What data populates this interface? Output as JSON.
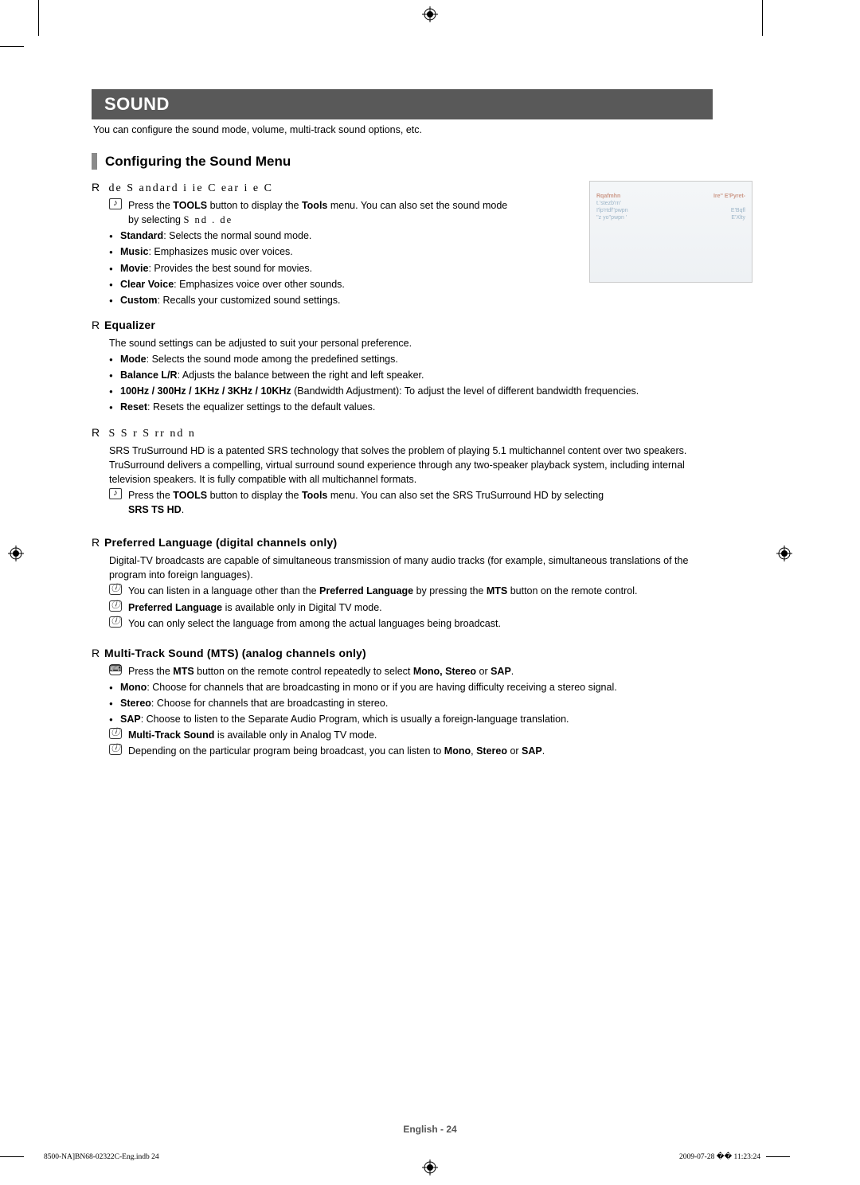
{
  "title": "SOUND",
  "intro": "You can configure the sound mode, volume, multi-track sound options, etc.",
  "sectionHeading": "Configuring the Sound Menu",
  "mode": {
    "head_prefix": "R",
    "head_serif": "    de    S    andard           i                ie     C    ear        i    e     C",
    "tool_pre": "Press the ",
    "tool_b1": "TOOLS",
    "tool_mid": " button to display the ",
    "tool_b2": "Tools",
    "tool_post": " menu. You can also set the sound mode by selecting ",
    "tool_serif": "              S      nd .      de",
    "items": [
      {
        "b": "Standard",
        "t": ": Selects the normal sound mode."
      },
      {
        "b": "Music",
        "t": ": Emphasizes music over voices."
      },
      {
        "b": "Movie",
        "t": ": Provides the best sound for movies."
      },
      {
        "b": "Clear Voice",
        "t": ": Emphasizes voice over other sounds."
      },
      {
        "b": "Custom",
        "t": ": Recalls your customized sound settings."
      }
    ]
  },
  "equalizer": {
    "head_prefix": "R",
    "head_bold": "Equalizer",
    "intro": "The sound settings can be adjusted to suit your personal preference.",
    "items": [
      {
        "b": "Mode",
        "t": ": Selects the sound mode among the predefined settings."
      },
      {
        "b": "Balance L/R",
        "t": ": Adjusts the balance between the right and left speaker."
      },
      {
        "b": "100Hz / 300Hz / 1KHz / 3KHz / 10KHz",
        "t": " (Bandwidth Adjustment): To adjust the level of different bandwidth frequencies."
      },
      {
        "b": "Reset",
        "t": ": Resets the equalizer settings to the default values."
      }
    ]
  },
  "srs": {
    "head_prefix": "R",
    "head_serif": "  S    S    r    S   rr        nd                           n",
    "para": "SRS TruSurround HD is a patented SRS technology that solves the problem of playing 5.1 multichannel content over two speakers. TruSurround delivers a compelling, virtual surround sound experience through any two-speaker playback system, including internal television speakers. It is fully compatible with all multichannel formats.",
    "tool_pre": "Press the ",
    "tool_b1": "TOOLS",
    "tool_mid": " button to display the ",
    "tool_b2": "Tools",
    "tool_post": " menu. You can also set the SRS TruSurround HD by selecting",
    "tool_last_b": "SRS TS HD",
    "tool_last_t": "."
  },
  "preflang": {
    "head_prefix": "R",
    "head_bold": "Preferred Language (digital channels only)",
    "para": "Digital-TV broadcasts are capable of simultaneous transmission of many audio tracks (for example, simultaneous translations of the program into foreign languages).",
    "note1_pre": "You can listen in a language other than the ",
    "note1_b1": "Preferred Language",
    "note1_mid": " by pressing the ",
    "note1_b2": "MTS",
    "note1_post": " button on the remote control.",
    "note2_b": "Preferred Language",
    "note2_t": " is available only in Digital TV mode.",
    "note3": "You can only select the language from among the actual languages being broadcast."
  },
  "mts": {
    "head_prefix": "R",
    "head_bold": "Multi-Track Sound (MTS) (analog channels only)",
    "btn_pre": "Press the ",
    "btn_b1": "MTS",
    "btn_mid": " button on the remote control repeatedly to select ",
    "btn_b2": "Mono, Stereo",
    "btn_mid2": " or ",
    "btn_b3": "SAP",
    "btn_post": ".",
    "items": [
      {
        "b": "Mono",
        "t": ": Choose for channels that are broadcasting in mono or if you are having difficulty receiving a stereo signal."
      },
      {
        "b": "Stereo",
        "t": ": Choose for channels that are broadcasting in stereo."
      },
      {
        "b": "SAP",
        "t": ": Choose to listen to the Separate Audio Program, which is usually a foreign-language translation."
      }
    ],
    "note1_b": "Multi-Track Sound",
    "note1_t": " is available only in Analog TV mode.",
    "note2_pre": "Depending on the particular program being broadcast, you can listen to ",
    "note2_b1": "Mono",
    "note2_mid1": ", ",
    "note2_b2": "Stereo",
    "note2_mid2": " or ",
    "note2_b3": "SAP",
    "note2_post": "."
  },
  "osd": {
    "rows": [
      {
        "l": "",
        "r": ""
      },
      {
        "l": "",
        "r": ""
      },
      {
        "l": "Rqafmhn",
        "r": "Ire''    E'Pyret-"
      },
      {
        "l": "t.'stezb'rn'",
        "r": ""
      },
      {
        "l": "I'lp'rtdf''pwpn",
        "r": "E'Bqfl"
      },
      {
        "l": "''z yo''pwpn '",
        "r": "E'Xlty"
      }
    ]
  },
  "footer": "English - 24",
  "bottomLeft": "8500-NA]BN68-02322C-Eng.indb   24",
  "bottomRight": "2009-07-28   �� 11:23:24"
}
